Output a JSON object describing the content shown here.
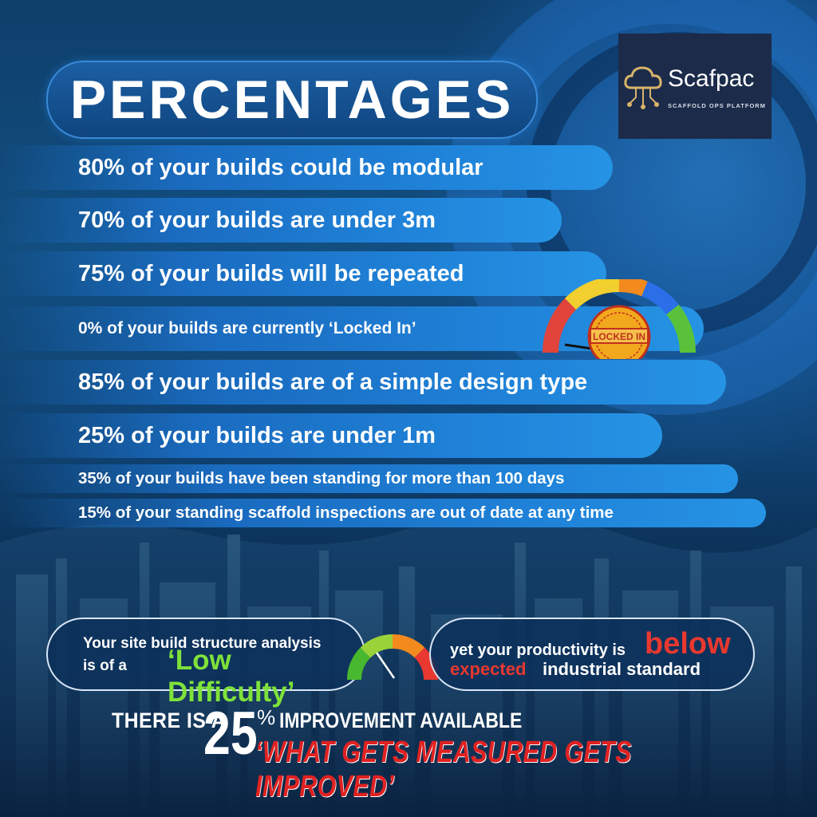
{
  "header": {
    "title": "PERCENTAGES"
  },
  "logo": {
    "name": "Scafpac",
    "tagline": "SCAFFOLD OPS PLATFORM"
  },
  "stats": [
    {
      "text": "80% of your builds could be modular"
    },
    {
      "text": "70% of your builds are under 3m"
    },
    {
      "text": "75% of your builds will be repeated"
    },
    {
      "text": "0% of your builds are currently ‘Locked In’"
    },
    {
      "text": "85% of your builds are of a simple design type"
    },
    {
      "text": "25% of your builds are under 1m"
    },
    {
      "text": "35% of your builds have been standing for more than 100 days"
    },
    {
      "text": "15% of your standing scaffold inspections are out of date at any time"
    }
  ],
  "badge": {
    "text": "LOCKED IN"
  },
  "analysis": {
    "line1": "Your site build structure analysis",
    "line2": "is of a",
    "quote": "‘Low Difficulty’"
  },
  "productivity": {
    "line1": "yet your productivity is",
    "below": "below",
    "expected": "expected",
    "rest": "industrial standard"
  },
  "footer": {
    "prefix": "THERE IS A",
    "number": "25",
    "percent": "%",
    "suffix": "IMPROVEMENT AVAILABLE",
    "slogan": "‘WHAT GETS MEASURED GETS IMPROVED’"
  },
  "colors": {
    "accent_green": "#7fe23a",
    "accent_red": "#e8382f",
    "bar_blue": "#1f82d8"
  }
}
